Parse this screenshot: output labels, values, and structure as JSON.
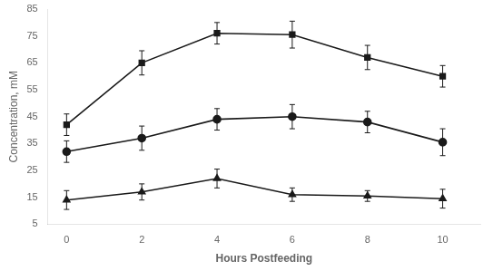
{
  "chart_data": {
    "type": "line",
    "x": [
      0,
      2,
      4,
      6,
      8,
      10
    ],
    "series": [
      {
        "values": [
          42,
          65,
          76,
          75.5,
          67,
          60
        ],
        "yerr": [
          4,
          4.5,
          4,
          5,
          4.5,
          4
        ],
        "color": "#1a1a1a",
        "marker": "square"
      },
      {
        "values": [
          32,
          37,
          44,
          45,
          43,
          35.5
        ],
        "yerr": [
          4,
          4.5,
          4,
          4.5,
          4,
          5
        ],
        "color": "#1a1a1a",
        "marker": "circle"
      },
      {
        "values": [
          14,
          17,
          22,
          16,
          15.5,
          14.5
        ],
        "yerr": [
          3.5,
          3,
          3.5,
          2.5,
          2,
          3.5
        ],
        "color": "#1a1a1a",
        "marker": "triangle"
      }
    ],
    "xlabel": "Hours Postfeeding",
    "ylabel": "Concentration, mM",
    "xlim": [
      -0.5,
      11
    ],
    "xticks": [
      0,
      2,
      4,
      6,
      8,
      10
    ],
    "ylim": [
      5,
      85
    ],
    "yticks": [
      5,
      15,
      25,
      35,
      45,
      55,
      65,
      75,
      85
    ],
    "grid": false
  }
}
